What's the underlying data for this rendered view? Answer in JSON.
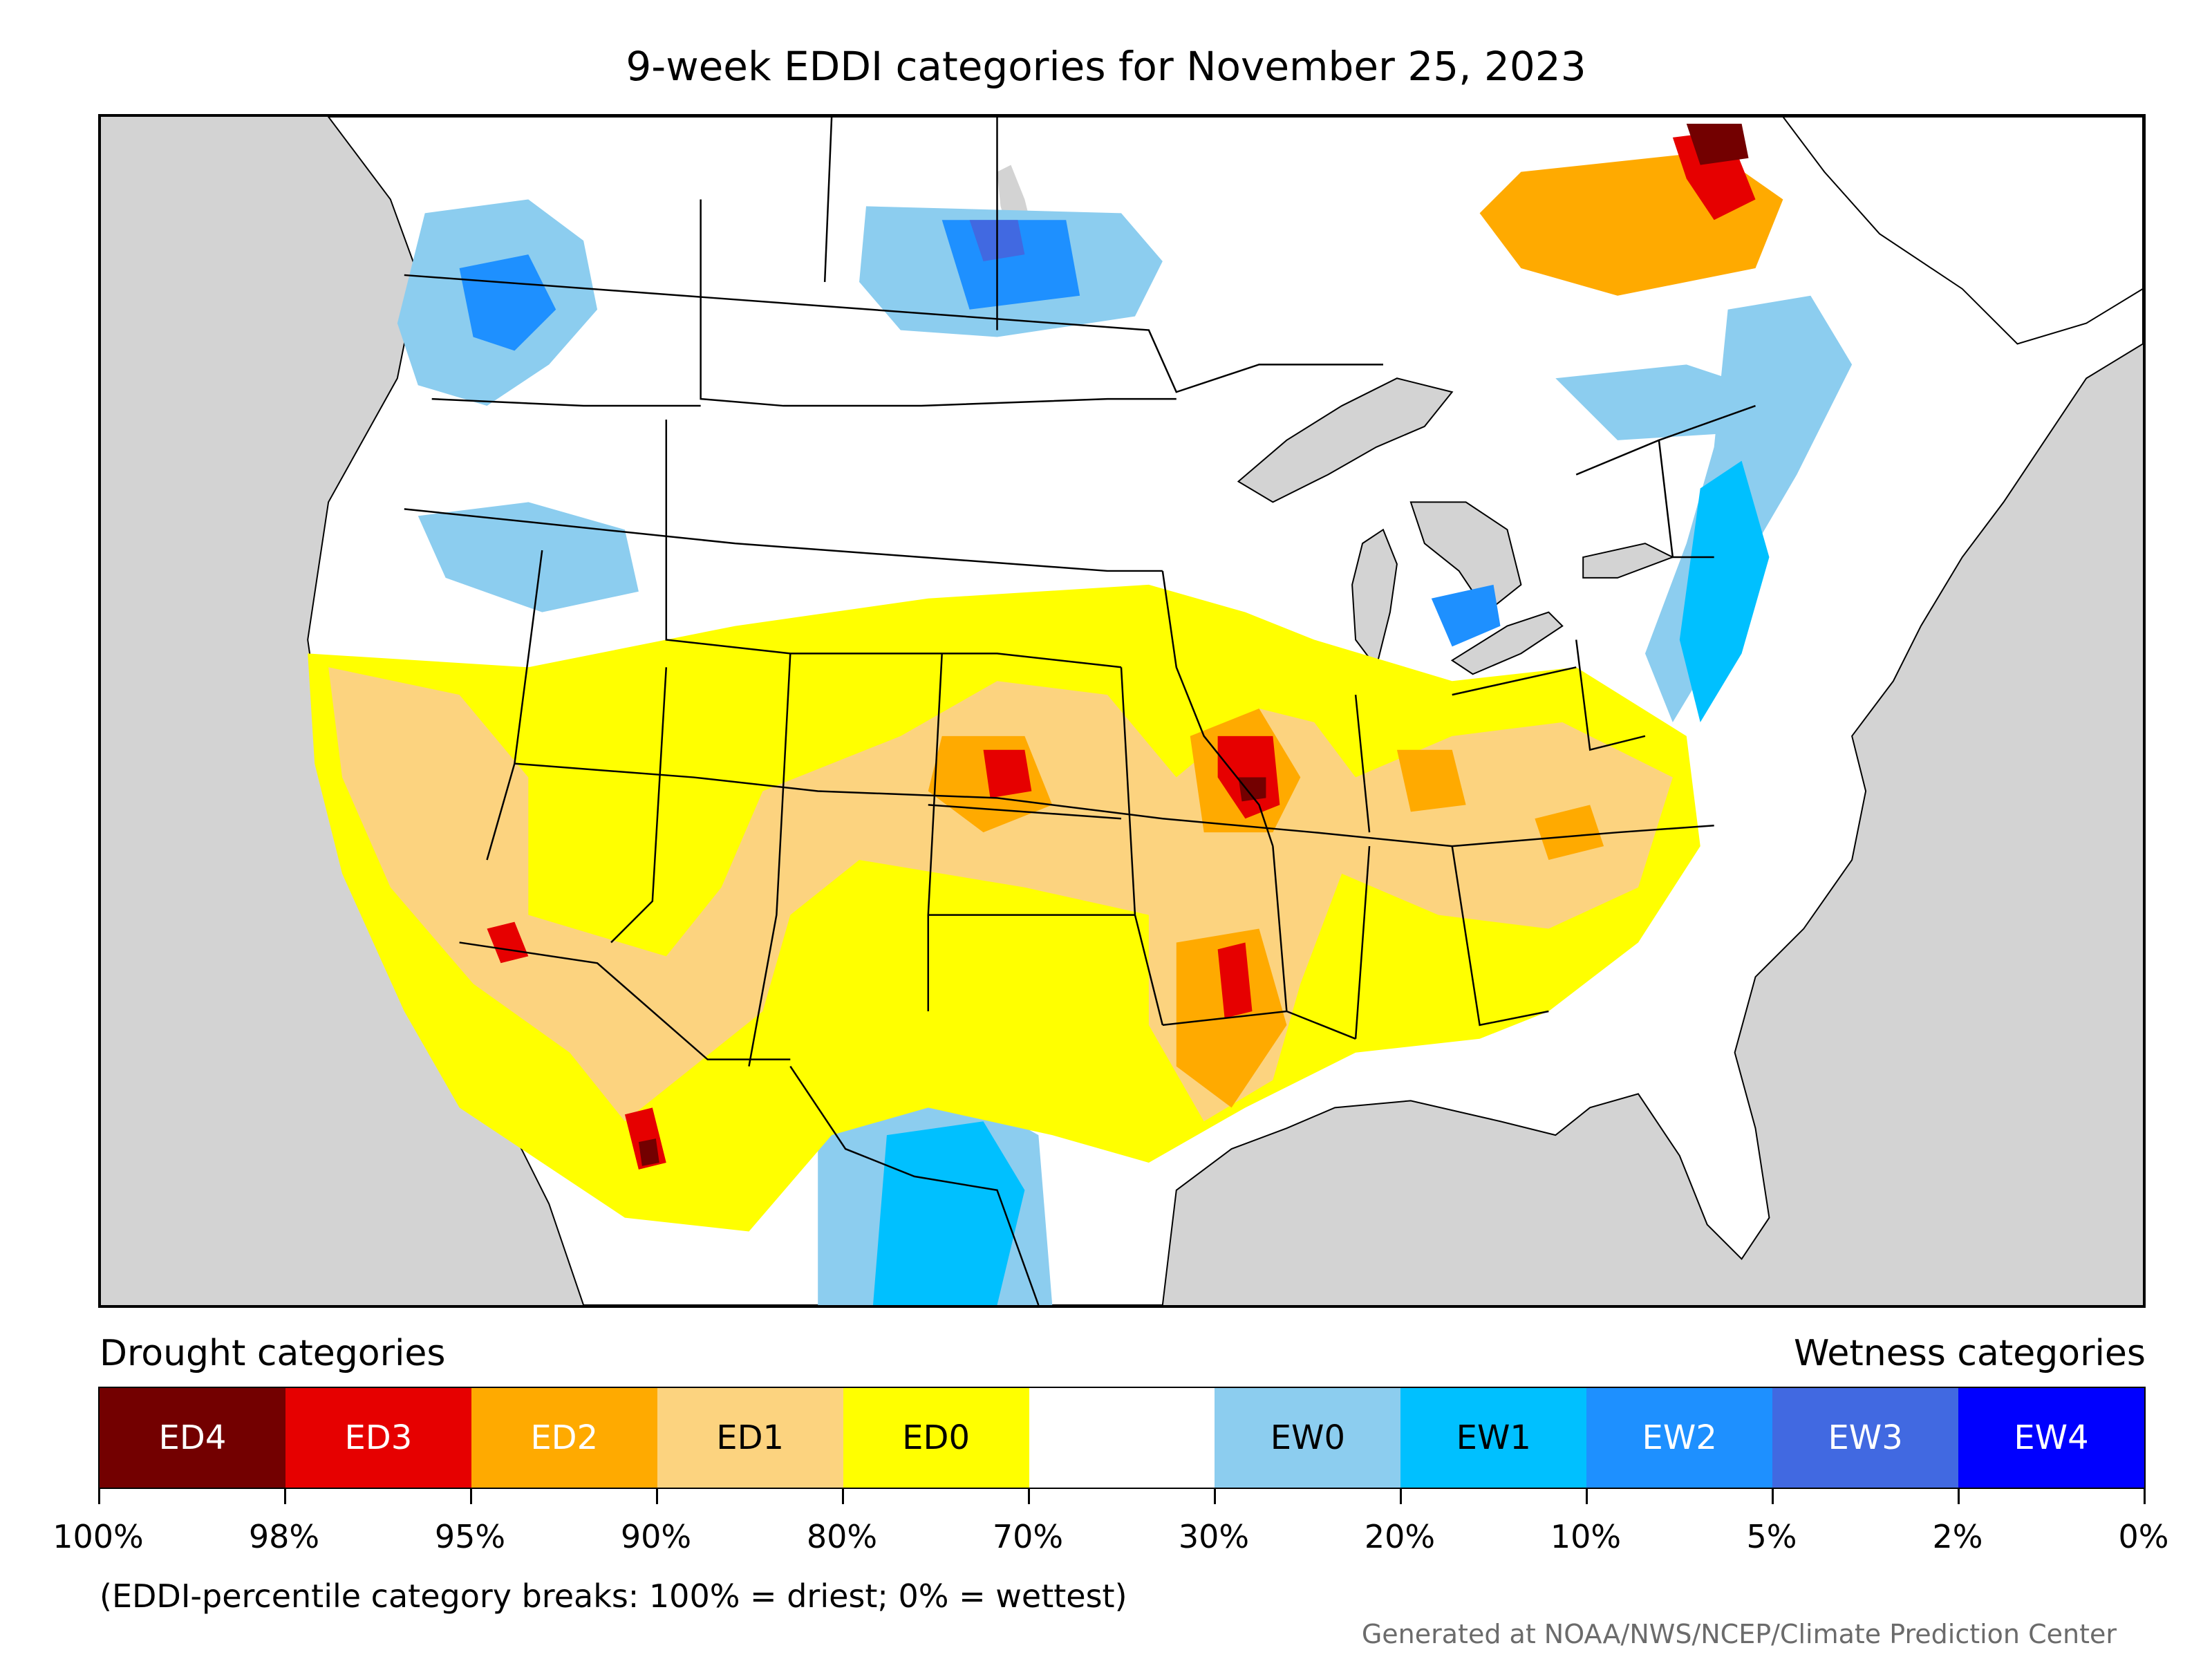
{
  "title": "9-week EDDI categories for November 25, 2023",
  "legend": {
    "drought_heading": "Drought categories",
    "wetness_heading": "Wetness categories",
    "categories": [
      {
        "label": "ED4",
        "color": "#730000",
        "text_color": "#ffffff"
      },
      {
        "label": "ED3",
        "color": "#e60000",
        "text_color": "#ffffff"
      },
      {
        "label": "ED2",
        "color": "#ffaa00",
        "text_color": "#ffffff"
      },
      {
        "label": "ED1",
        "color": "#fcd37f",
        "text_color": "#000000"
      },
      {
        "label": "ED0",
        "color": "#ffff00",
        "text_color": "#000000"
      },
      {
        "label": "",
        "color": "#ffffff",
        "text_color": "#000000"
      },
      {
        "label": "EW0",
        "color": "#8ccdef",
        "text_color": "#000000"
      },
      {
        "label": "EW1",
        "color": "#00c0ff",
        "text_color": "#000000"
      },
      {
        "label": "EW2",
        "color": "#1e90ff",
        "text_color": "#ffffff"
      },
      {
        "label": "EW3",
        "color": "#4169e1",
        "text_color": "#ffffff"
      },
      {
        "label": "EW4",
        "color": "#0000ff",
        "text_color": "#ffffff"
      }
    ],
    "breaks": [
      "100%",
      "98%",
      "95%",
      "90%",
      "80%",
      "70%",
      "30%",
      "20%",
      "10%",
      "5%",
      "2%",
      "0%"
    ]
  },
  "note": "(EDDI-percentile category breaks: 100% = driest; 0% = wettest)",
  "credit": "Generated at NOAA/NWS/NCEP/Climate Prediction Center",
  "map_colors": {
    "ocean": "#d3d3d3",
    "land": "#ffffff",
    "lakes": "#d3d3d3"
  }
}
